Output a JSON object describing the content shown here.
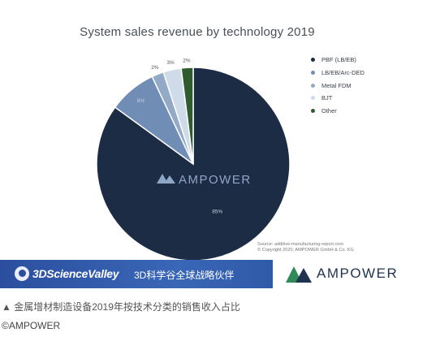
{
  "chart_data": {
    "type": "pie",
    "title": "System sales revenue by technology 2019",
    "series": [
      {
        "name": "PBF (LB/EB)",
        "value": 85,
        "label": "85%",
        "color": "#1b2c44"
      },
      {
        "name": "LB/EB/Arc-DED",
        "value": 8,
        "label": "8%",
        "color": "#6f8db5"
      },
      {
        "name": "Metal FDM",
        "value": 2,
        "label": "2%",
        "color": "#93aac7"
      },
      {
        "name": "BJT",
        "value": 3,
        "label": "3%",
        "color": "#cfdbe9"
      },
      {
        "name": "Other",
        "value": 2,
        "label": "2%",
        "color": "#2f5b2f"
      }
    ],
    "legend_position": "right",
    "watermark": "AMPOWER",
    "source_lines": [
      "Source: additive-manufacturing-report.com",
      "© Copyright 2020, AMPOWER GmbH & Co. KG"
    ]
  },
  "banner": {
    "left_logo": "3DScienceValley",
    "middle_text": "3D科学谷全球战略伙伴",
    "right_logo": "AMPOWER"
  },
  "caption": "▲ 金属增材制造设备2019年按技术分类的销售收入占比",
  "credit": "©AMPOWER"
}
